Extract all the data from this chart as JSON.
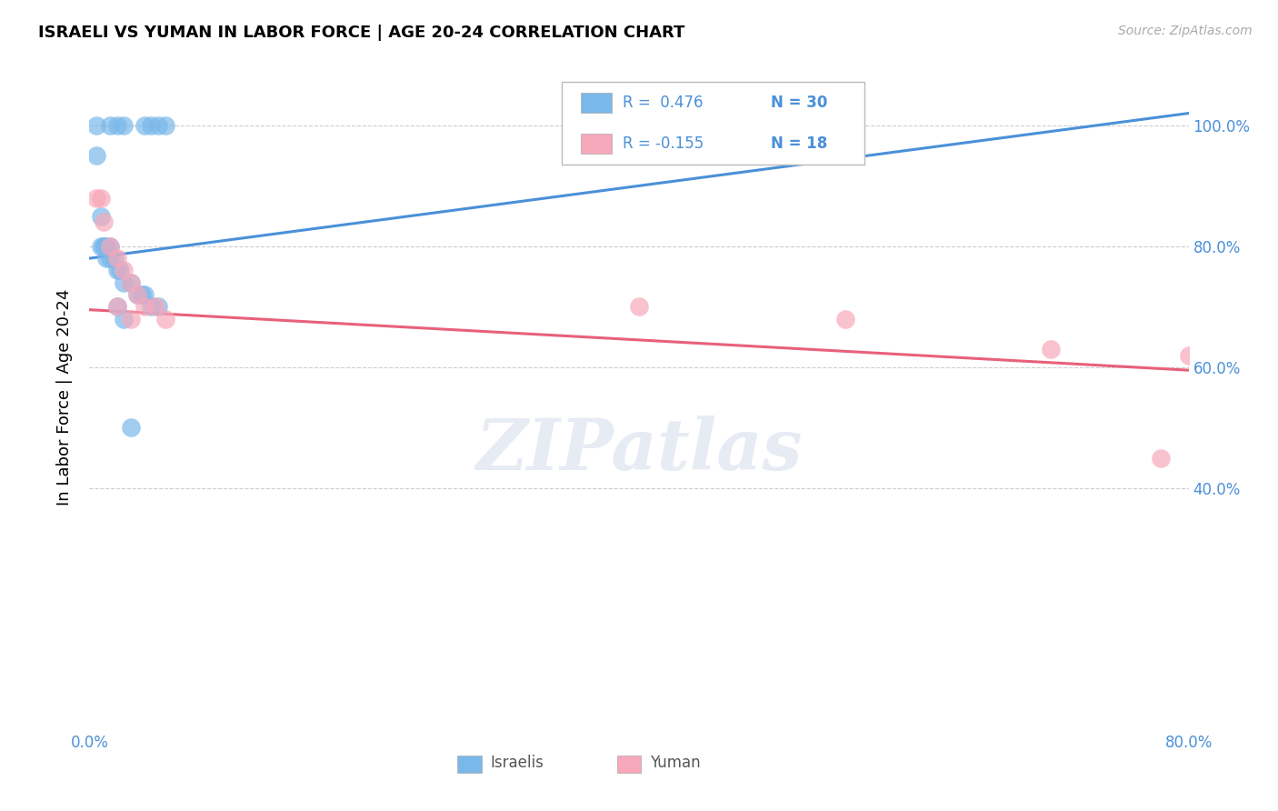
{
  "title": "ISRAELI VS YUMAN IN LABOR FORCE | AGE 20-24 CORRELATION CHART",
  "source": "Source: ZipAtlas.com",
  "ylabel": "In Labor Force | Age 20-24",
  "watermark": "ZIPatlas",
  "xlim": [
    0.0,
    0.8
  ],
  "ylim": [
    0.0,
    1.1
  ],
  "xtick_positions": [
    0.0,
    0.1,
    0.2,
    0.3,
    0.4,
    0.5,
    0.6,
    0.7,
    0.8
  ],
  "xtick_labels": [
    "0.0%",
    "",
    "",
    "",
    "",
    "",
    "",
    "",
    "80.0%"
  ],
  "ytick_positions": [
    0.4,
    0.6,
    0.8,
    1.0
  ],
  "ytick_labels": [
    "40.0%",
    "60.0%",
    "80.0%",
    "100.0%"
  ],
  "israeli_color": "#7ab8ea",
  "yuman_color": "#f7a8bb",
  "trend_israeli_color": "#4a90d9",
  "trend_yuman_color": "#e8607a",
  "legend_R_israeli": "R =  0.476",
  "legend_N_israeli": "N = 30",
  "legend_R_yuman": "R = -0.155",
  "legend_N_yuman": "N = 18",
  "israeli_x": [
    0.005,
    0.015,
    0.02,
    0.025,
    0.04,
    0.045,
    0.05,
    0.055,
    0.005,
    0.008,
    0.01,
    0.012,
    0.015,
    0.015,
    0.018,
    0.02,
    0.022,
    0.025,
    0.03,
    0.035,
    0.038,
    0.04,
    0.045,
    0.05,
    0.008,
    0.01,
    0.012,
    0.02,
    0.025,
    0.03
  ],
  "israeli_y": [
    1.0,
    1.0,
    1.0,
    1.0,
    1.0,
    1.0,
    1.0,
    1.0,
    0.95,
    0.85,
    0.8,
    0.8,
    0.8,
    0.78,
    0.78,
    0.76,
    0.76,
    0.74,
    0.74,
    0.72,
    0.72,
    0.72,
    0.7,
    0.7,
    0.8,
    0.8,
    0.78,
    0.7,
    0.68,
    0.5
  ],
  "yuman_x": [
    0.005,
    0.008,
    0.01,
    0.015,
    0.02,
    0.025,
    0.03,
    0.035,
    0.04,
    0.048,
    0.055,
    0.02,
    0.03,
    0.4,
    0.55,
    0.7,
    0.78,
    0.8
  ],
  "yuman_y": [
    0.88,
    0.88,
    0.84,
    0.8,
    0.78,
    0.76,
    0.74,
    0.72,
    0.7,
    0.7,
    0.68,
    0.7,
    0.68,
    0.7,
    0.68,
    0.63,
    0.45,
    0.62
  ],
  "israeli_trend_x": [
    0.0,
    0.8
  ],
  "israeli_trend_y": [
    0.78,
    1.02
  ],
  "yuman_trend_x": [
    0.0,
    0.8
  ],
  "yuman_trend_y": [
    0.695,
    0.595
  ]
}
